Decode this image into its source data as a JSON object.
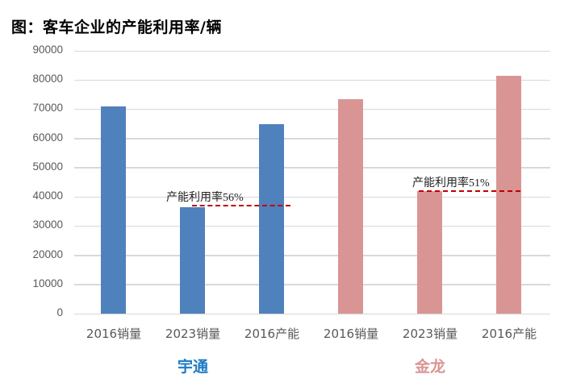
{
  "title": "图：客车企业的产能利用率/辆",
  "chart_data": {
    "type": "bar",
    "title": "图：客车企业的产能利用率/辆",
    "xlabel": "",
    "ylabel": "",
    "ylim": [
      0,
      90000
    ],
    "yticks": [
      0,
      10000,
      20000,
      30000,
      40000,
      50000,
      60000,
      70000,
      80000,
      90000
    ],
    "grid": true,
    "groups": [
      "宇通",
      "金龙"
    ],
    "categories": [
      "2016销量",
      "2023销量",
      "2016产能",
      "2016销量",
      "2023销量",
      "2016产能"
    ],
    "series": [
      {
        "name": "宇通",
        "color": "#4f81bd",
        "categories": [
          "2016销量",
          "2023销量",
          "2016产能"
        ],
        "values": [
          71000,
          36500,
          65000
        ]
      },
      {
        "name": "金龙",
        "color": "#d99594",
        "categories": [
          "2016销量",
          "2023销量",
          "2016产能"
        ],
        "values": [
          73500,
          42000,
          81500
        ]
      }
    ],
    "annotations": [
      {
        "text": "产能利用率56%",
        "group": "宇通",
        "line_value": 37000,
        "line_style": "dashed",
        "line_color": "#c00000"
      },
      {
        "text": "产能利用率51%",
        "group": "金龙",
        "line_value": 42000,
        "line_style": "dashed",
        "line_color": "#c00000"
      }
    ],
    "legend": "none"
  },
  "yaxis_labels": [
    "90000",
    "80000",
    "70000",
    "60000",
    "50000",
    "40000",
    "30000",
    "20000",
    "10000",
    "0"
  ],
  "xaxis_labels": [
    "2016销量",
    "2023销量",
    "2016产能",
    "2016销量",
    "2023销量",
    "2016产能"
  ],
  "group_labels": {
    "yutong": "宇通",
    "jinlong": "金龙"
  },
  "group_colors": {
    "yutong": "#1f7bc4",
    "jinlong": "#d99594"
  },
  "annotations": {
    "yutong": "产能利用率56%",
    "jinlong": "产能利用率51%"
  }
}
